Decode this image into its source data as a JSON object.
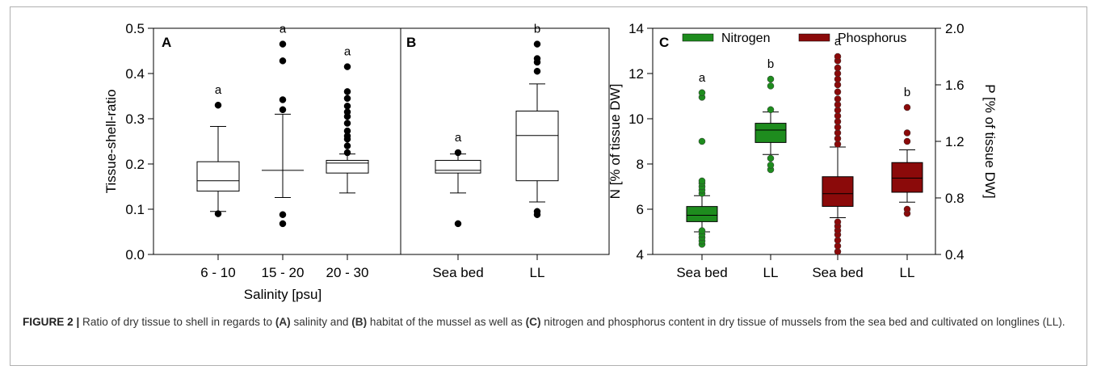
{
  "chart_data": [
    {
      "panel": "A",
      "type": "box",
      "xlabel": "Salinity [psu]",
      "ylabel": "Tissue-shell-ratio",
      "ylim": [
        0.0,
        0.5
      ],
      "yticks": [
        "0.0",
        "0.1",
        "0.2",
        "0.3",
        "0.4",
        "0.5"
      ],
      "categories": [
        "6 - 10",
        "15 - 20",
        "20 - 30"
      ],
      "boxes": [
        {
          "category": "6 - 10",
          "q1": 0.14,
          "median": 0.163,
          "q3": 0.205,
          "whisker_low": 0.095,
          "whisker_high": 0.283,
          "outliers": [
            0.09,
            0.33
          ],
          "letter": "a"
        },
        {
          "category": "15 - 20",
          "q1": null,
          "median": 0.186,
          "q3": null,
          "whisker_low": 0.126,
          "whisker_high": 0.31,
          "outliers": [
            0.068,
            0.088,
            0.32,
            0.342,
            0.428,
            0.465
          ],
          "letter": "a"
        },
        {
          "category": "20 - 30",
          "q1": 0.18,
          "median": 0.202,
          "q3": 0.208,
          "whisker_low": 0.136,
          "whisker_high": 0.222,
          "outliers": [
            0.225,
            0.24,
            0.255,
            0.262,
            0.273,
            0.29,
            0.305,
            0.315,
            0.328,
            0.345,
            0.36,
            0.415
          ],
          "letter": "a"
        }
      ]
    },
    {
      "panel": "B",
      "type": "box",
      "ylim": [
        0.0,
        0.5
      ],
      "categories": [
        "Sea bed",
        "LL"
      ],
      "boxes": [
        {
          "category": "Sea bed",
          "q1": 0.18,
          "median": 0.186,
          "q3": 0.208,
          "whisker_low": 0.136,
          "whisker_high": 0.222,
          "outliers": [
            0.068,
            0.225
          ],
          "letter": "a"
        },
        {
          "category": "LL",
          "q1": 0.163,
          "median": 0.263,
          "q3": 0.317,
          "whisker_low": 0.116,
          "whisker_high": 0.377,
          "outliers": [
            0.088,
            0.095,
            0.405,
            0.425,
            0.433,
            0.465
          ],
          "letter": "b"
        }
      ]
    },
    {
      "panel": "C",
      "type": "box",
      "ylabel_left": "N [% of tissue DW]",
      "ylabel_right": "P [% of tissue DW]",
      "ylim_left": [
        4,
        14
      ],
      "ylim_right": [
        0.4,
        2.0
      ],
      "yticks_left": [
        "4",
        "6",
        "8",
        "10",
        "12",
        "14"
      ],
      "yticks_right": [
        "0.4",
        "0.8",
        "1.2",
        "1.6",
        "2.0"
      ],
      "categories": [
        "Sea bed",
        "LL",
        "Sea bed",
        "LL"
      ],
      "legend": [
        {
          "name": "Nitrogen",
          "color": "#1e8c1e"
        },
        {
          "name": "Phosphorus",
          "color": "#8b0a0a"
        }
      ],
      "legend_position": "top",
      "series": [
        {
          "name": "Nitrogen",
          "axis": "left",
          "color": "#1e8c1e",
          "boxes": [
            {
              "category": "Sea bed",
              "q1": 5.45,
              "median": 5.73,
              "q3": 6.12,
              "whisker_low": 5.0,
              "whisker_high": 6.6,
              "outliers": [
                4.45,
                4.6,
                4.75,
                4.9,
                5.05,
                6.7,
                6.85,
                7.0,
                7.15,
                7.25,
                9.0,
                10.95,
                11.15
              ],
              "letter": "a"
            },
            {
              "category": "LL",
              "q1": 8.95,
              "median": 9.5,
              "q3": 9.8,
              "whisker_low": 8.42,
              "whisker_high": 10.3,
              "outliers": [
                7.75,
                7.95,
                8.25,
                10.4,
                11.45,
                11.75
              ],
              "letter": "b"
            }
          ]
        },
        {
          "name": "Phosphorus",
          "axis": "right",
          "color": "#8b0a0a",
          "boxes": [
            {
              "category": "Sea bed",
              "q1": 0.74,
              "median": 0.83,
              "q3": 0.95,
              "whisker_low": 0.66,
              "whisker_high": 1.16,
              "outliers": [
                0.42,
                0.46,
                0.5,
                0.54,
                0.57,
                0.6,
                0.63,
                1.18,
                1.22,
                1.26,
                1.3,
                1.34,
                1.38,
                1.42,
                1.46,
                1.5,
                1.55,
                1.6,
                1.64,
                1.68,
                1.72,
                1.77,
                1.8
              ],
              "letter": "a"
            },
            {
              "category": "LL",
              "q1": 0.84,
              "median": 0.94,
              "q3": 1.05,
              "whisker_low": 0.77,
              "whisker_high": 1.14,
              "outliers": [
                0.69,
                0.72,
                1.2,
                1.26,
                1.44
              ],
              "letter": "b"
            }
          ]
        }
      ]
    }
  ],
  "caption": {
    "label": "FIGURE 2 |",
    "t1": " Ratio of dry tissue to shell in regards to ",
    "A": "(A)",
    "t2": " salinity and ",
    "B": "(B)",
    "t3": " habitat of the mussel as well as ",
    "C": "(C)",
    "t4": " nitrogen and phosphorus content in dry tissue of mussels from the sea bed and cultivated on longlines (LL)."
  }
}
